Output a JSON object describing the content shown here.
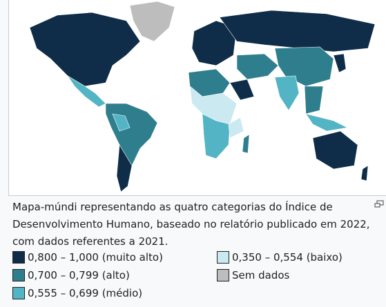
{
  "caption": "Mapa-múndi representando as quatro categorias do Índice de Desenvolvimento Humano, baseado no relatório publicado em 2022, com dados referentes a 2021.",
  "legend": [
    {
      "label": "0,800 – 1,000 (muito alto)",
      "color": "#0f2d48"
    },
    {
      "label": "0,700 – 0,799 (alto)",
      "color": "#2f7e8e"
    },
    {
      "label": "0,555 – 0,699 (médio)",
      "color": "#52b4c4"
    },
    {
      "label": "0,350 – 0,554 (baixo)",
      "color": "#cbe9f0"
    },
    {
      "label": "Sem dados",
      "color": "#bdbdbd"
    }
  ]
}
